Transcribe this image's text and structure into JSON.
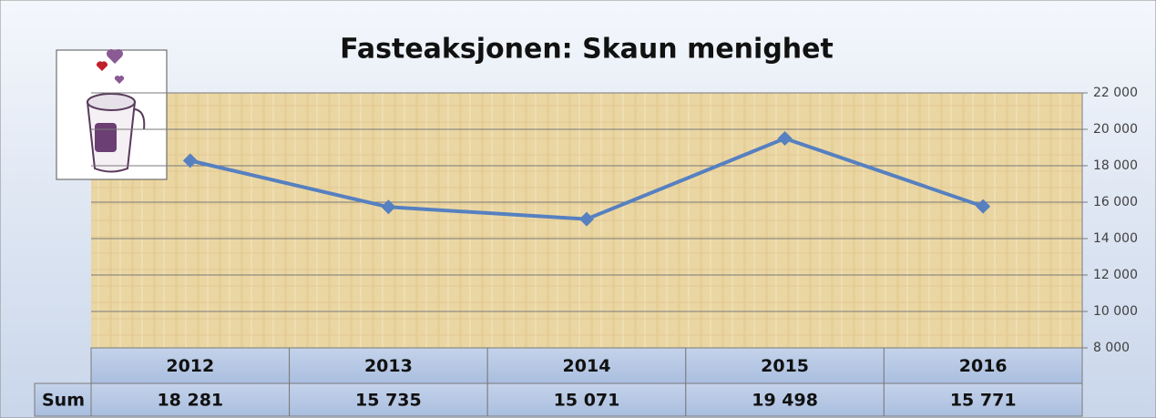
{
  "chart_data": {
    "type": "line",
    "title": "Fasteaksjonen: Skaun menighet",
    "categories": [
      "2012",
      "2013",
      "2014",
      "2015",
      "2016"
    ],
    "series": [
      {
        "name": "Sum",
        "color": "#5680c0",
        "values": [
          18281,
          15735,
          15071,
          19498,
          15771
        ],
        "value_labels": [
          "18 281",
          "15 735",
          "15 071",
          "19 498",
          "15 771"
        ]
      }
    ],
    "ylim": [
      8000,
      22000
    ],
    "yticks": [
      {
        "value": 8000,
        "label": "8 000"
      },
      {
        "value": 10000,
        "label": "10 000"
      },
      {
        "value": 12000,
        "label": "12 000"
      },
      {
        "value": 14000,
        "label": "14 000"
      },
      {
        "value": 16000,
        "label": "16 000"
      },
      {
        "value": 18000,
        "label": "18 000"
      },
      {
        "value": 20000,
        "label": "20 000"
      },
      {
        "value": 22000,
        "label": "22 000"
      }
    ],
    "grid": true,
    "y_axis_side": "right",
    "data_table": true
  }
}
